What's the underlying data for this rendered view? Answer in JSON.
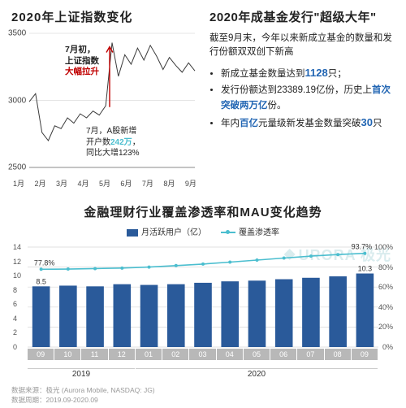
{
  "top_left": {
    "title": "2020年上证指数变化",
    "chart": {
      "type": "line",
      "background_color": "#ffffff",
      "line_color": "#3a3a3a",
      "line_width": 1,
      "arrow_color": "#c00000",
      "ylim": [
        2500,
        3500
      ],
      "yticks": [
        2500,
        3000,
        3500
      ],
      "x_categories": [
        "1月",
        "2月",
        "3月",
        "4月",
        "5月",
        "6月",
        "7月",
        "8月",
        "9月"
      ],
      "series": [
        2990,
        3050,
        2760,
        2700,
        2810,
        2790,
        2870,
        2830,
        2900,
        2870,
        2920,
        2890,
        2960,
        3430,
        3180,
        3340,
        3270,
        3390,
        3300,
        3410,
        3330,
        3230,
        3320,
        3260,
        3210,
        3280,
        3220
      ]
    },
    "anno1_l1": "7月初，",
    "anno1_l2": "上证指数",
    "anno1_l3": "大幅拉升",
    "anno2_l1": "7月，A股新增",
    "anno2_l2_a": "开户数",
    "anno2_l2_b": "242万",
    "anno2_l2_c": "，",
    "anno2_l3": "同比大增123%"
  },
  "top_right": {
    "title": "2020年成基金发行\"超级大年\"",
    "intro": "截至9月末，今年以来新成立基金的数量和发行份额双双创下新高",
    "bullets": [
      {
        "pre": "新成立基金数量达到",
        "num": "1128",
        "post": "只；"
      },
      {
        "pre": "发行份额达到23389.19亿份，历史上",
        "hl": "首次突破两万亿",
        "post": "份。"
      },
      {
        "pre": "年内",
        "hl1": "百亿",
        "mid": "元量级新发基金数量突破",
        "hl2": "30",
        "post": "只"
      }
    ]
  },
  "bottom": {
    "title": "金融理财行业覆盖渗透率和MAU变化趋势",
    "legend": {
      "bar_label": "月活跃用户（亿）",
      "bar_color": "#2a5a9a",
      "line_label": "覆盖渗透率",
      "line_color": "#4bbecf"
    },
    "chart": {
      "type": "combo",
      "background_color": "#ffffff",
      "grid_color": "#d9d9d9",
      "bar_color": "#2a5a9a",
      "bar_width": 0.65,
      "line_color": "#4bbecf",
      "marker": "circle",
      "marker_size": 4,
      "yl_lim": [
        0,
        14
      ],
      "yl_ticks": [
        0,
        2,
        4,
        6,
        8,
        10,
        12,
        14
      ],
      "yr_lim": [
        0,
        100
      ],
      "yr_ticks": [
        0,
        20,
        40,
        60,
        80,
        100
      ],
      "yr_suffix": "%",
      "categories": [
        "09",
        "10",
        "11",
        "12",
        "01",
        "02",
        "03",
        "04",
        "05",
        "06",
        "07",
        "08",
        "09"
      ],
      "years": {
        "2019": 4,
        "2020": 9
      },
      "bar_values": [
        8.5,
        8.6,
        8.5,
        8.8,
        8.7,
        8.8,
        9.0,
        9.2,
        9.3,
        9.5,
        9.7,
        9.9,
        10.3
      ],
      "line_values": [
        77.8,
        78,
        78.5,
        79,
        80,
        81.5,
        83,
        85,
        87,
        89,
        91,
        92.5,
        93.7
      ],
      "first_bar_label": "8.5",
      "last_bar_label": "10.3",
      "first_line_label": "77.8%",
      "last_line_label": "93.7%",
      "x_cell_bg": "#b8b8b8"
    }
  },
  "footer": {
    "source": "数据来源：极光 (Aurora Mobile, NASDAQ: JG)",
    "period": "数据周期：2019.09-2020.09"
  },
  "watermark": "URORA 极光"
}
